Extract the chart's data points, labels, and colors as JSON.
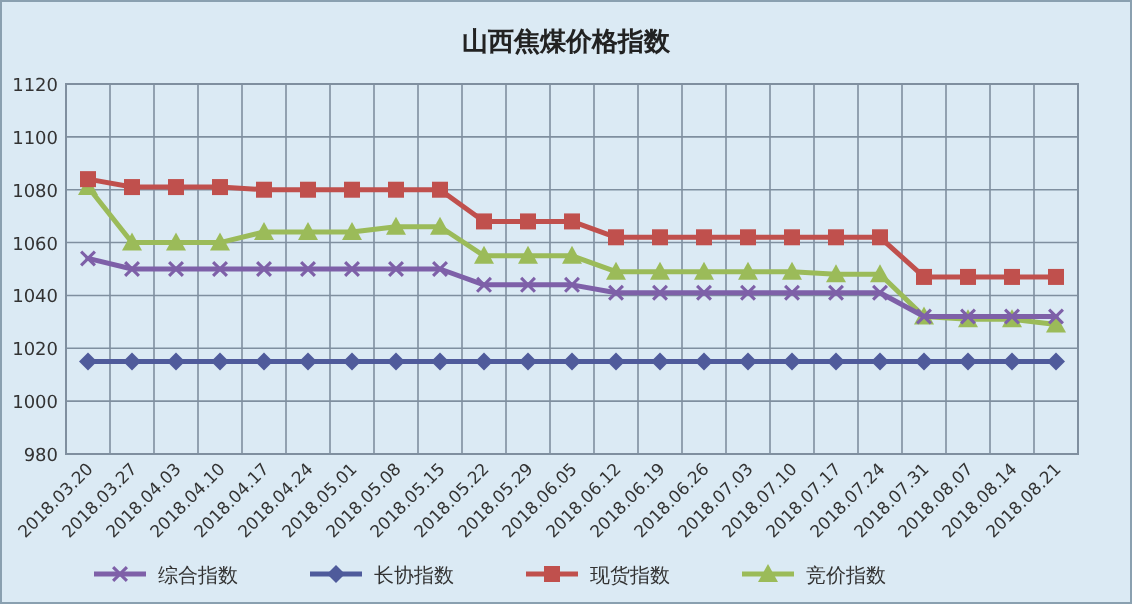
{
  "chart_data": {
    "type": "line",
    "title": "山西焦煤价格指数",
    "categories": [
      "2018.03.20",
      "2018.03.27",
      "2018.04.03",
      "2018.04.10",
      "2018.04.17",
      "2018.04.24",
      "2018.05.01",
      "2018.05.08",
      "2018.05.15",
      "2018.05.22",
      "2018.05.29",
      "2018.06.05",
      "2018.06.12",
      "2018.06.19",
      "2018.06.26",
      "2018.07.03",
      "2018.07.10",
      "2018.07.17",
      "2018.07.24",
      "2018.07.31",
      "2018.08.07",
      "2018.08.14",
      "2018.08.21"
    ],
    "series": [
      {
        "name": "综合指数",
        "color": "#7e60a8",
        "marker": "cross",
        "values": [
          1054,
          1050,
          1050,
          1050,
          1050,
          1050,
          1050,
          1050,
          1050,
          1044,
          1044,
          1044,
          1041,
          1041,
          1041,
          1041,
          1041,
          1041,
          1041,
          1032,
          1032,
          1032,
          1032
        ]
      },
      {
        "name": "长协指数",
        "color": "#4f5b9b",
        "marker": "diamond",
        "values": [
          1015,
          1015,
          1015,
          1015,
          1015,
          1015,
          1015,
          1015,
          1015,
          1015,
          1015,
          1015,
          1015,
          1015,
          1015,
          1015,
          1015,
          1015,
          1015,
          1015,
          1015,
          1015,
          1015
        ]
      },
      {
        "name": "现货指数",
        "color": "#c0504d",
        "marker": "square",
        "values": [
          1084,
          1081,
          1081,
          1081,
          1080,
          1080,
          1080,
          1080,
          1080,
          1068,
          1068,
          1068,
          1062,
          1062,
          1062,
          1062,
          1062,
          1062,
          1062,
          1047,
          1047,
          1047,
          1047
        ]
      },
      {
        "name": "竞价指数",
        "color": "#9bbb59",
        "marker": "triangle",
        "values": [
          1081,
          1060,
          1060,
          1060,
          1064,
          1064,
          1064,
          1066,
          1066,
          1055,
          1055,
          1055,
          1049,
          1049,
          1049,
          1049,
          1049,
          1048,
          1048,
          1032,
          1031,
          1031,
          1029
        ]
      }
    ],
    "ylim": [
      980,
      1120
    ],
    "yticks": [
      980,
      1000,
      1020,
      1040,
      1060,
      1080,
      1100,
      1120
    ],
    "grid": true,
    "legend": "bottom",
    "line_style": "solid"
  }
}
